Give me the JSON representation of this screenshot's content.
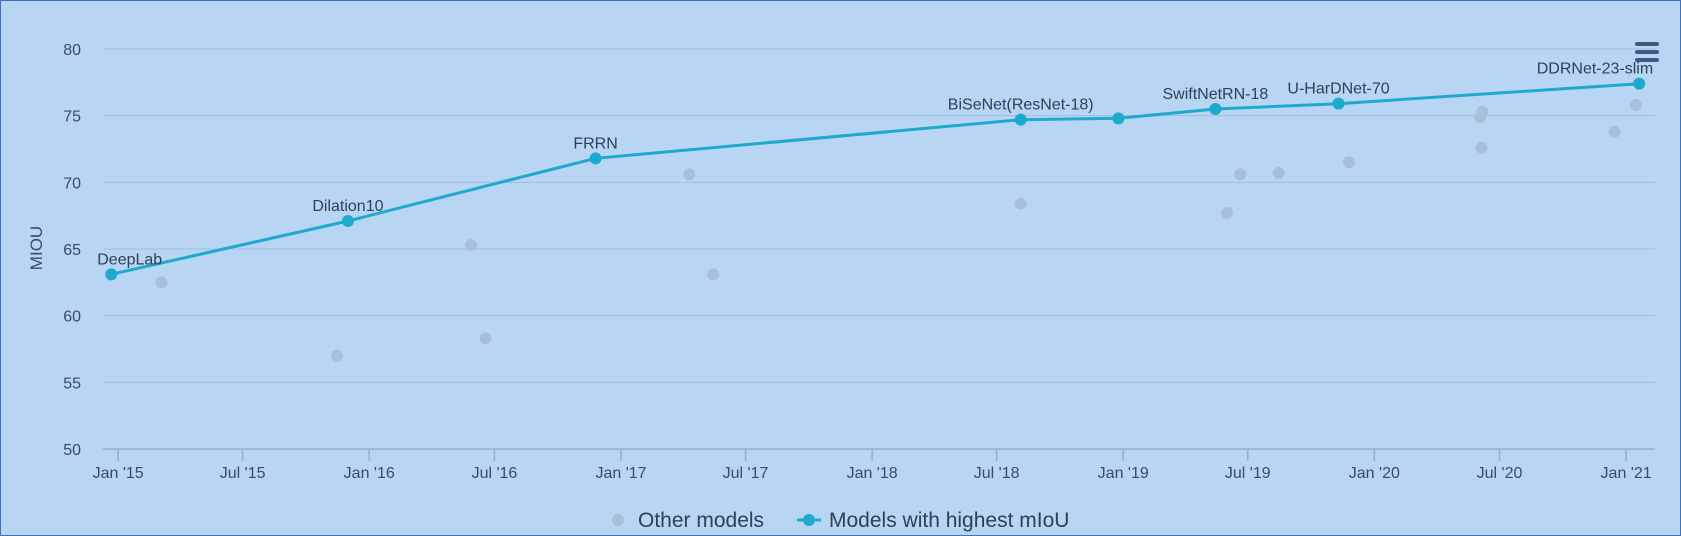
{
  "chart_data": {
    "type": "scatter",
    "ylabel": "MIOU",
    "xlabel": "",
    "ylim": [
      50,
      80
    ],
    "xlim": [
      "2014-12-10",
      "2021-02-12"
    ],
    "y_ticks": [
      50,
      55,
      60,
      65,
      70,
      75,
      80
    ],
    "x_ticks": [
      {
        "date": "2015-01-01",
        "label": "Jan '15"
      },
      {
        "date": "2015-07-01",
        "label": "Jul '15"
      },
      {
        "date": "2016-01-01",
        "label": "Jan '16"
      },
      {
        "date": "2016-07-01",
        "label": "Jul '16"
      },
      {
        "date": "2017-01-01",
        "label": "Jan '17"
      },
      {
        "date": "2017-07-01",
        "label": "Jul '17"
      },
      {
        "date": "2018-01-01",
        "label": "Jan '18"
      },
      {
        "date": "2018-07-01",
        "label": "Jul '18"
      },
      {
        "date": "2019-01-01",
        "label": "Jan '19"
      },
      {
        "date": "2019-07-01",
        "label": "Jul '19"
      },
      {
        "date": "2020-01-01",
        "label": "Jan '20"
      },
      {
        "date": "2020-07-01",
        "label": "Jul '20"
      },
      {
        "date": "2021-01-01",
        "label": "Jan '21"
      }
    ],
    "grid": true,
    "legend_position": "bottom-center",
    "series": [
      {
        "name": "Other models",
        "kind": "scatter",
        "color": "#a7bfd9",
        "points": [
          {
            "x": "2015-03-05",
            "y": 62.5
          },
          {
            "x": "2015-11-15",
            "y": 57.0
          },
          {
            "x": "2016-05-28",
            "y": 65.3
          },
          {
            "x": "2016-06-18",
            "y": 58.3
          },
          {
            "x": "2017-04-10",
            "y": 70.6
          },
          {
            "x": "2017-05-15",
            "y": 63.1
          },
          {
            "x": "2018-08-05",
            "y": 68.4
          },
          {
            "x": "2019-06-01",
            "y": 67.7
          },
          {
            "x": "2019-06-20",
            "y": 70.6
          },
          {
            "x": "2019-08-15",
            "y": 70.7
          },
          {
            "x": "2019-11-25",
            "y": 71.5
          },
          {
            "x": "2020-06-05",
            "y": 72.6
          },
          {
            "x": "2020-06-03",
            "y": 74.9
          },
          {
            "x": "2020-06-06",
            "y": 75.3
          },
          {
            "x": "2020-12-15",
            "y": 73.8
          },
          {
            "x": "2021-01-15",
            "y": 75.8
          }
        ]
      },
      {
        "name": "Models with highest mIoU",
        "kind": "line",
        "color": "#1eaacd",
        "points": [
          {
            "x": "2014-12-22",
            "y": 63.1,
            "label": "DeepLab"
          },
          {
            "x": "2015-12-01",
            "y": 67.1,
            "label": "Dilation10"
          },
          {
            "x": "2016-11-25",
            "y": 71.8,
            "label": "FRRN"
          },
          {
            "x": "2018-08-05",
            "y": 74.7,
            "label": "BiSeNet(ResNet-18)"
          },
          {
            "x": "2018-12-25",
            "y": 74.8,
            "label": ""
          },
          {
            "x": "2019-05-15",
            "y": 75.5,
            "label": "SwiftNetRN-18"
          },
          {
            "x": "2019-11-10",
            "y": 75.9,
            "label": "U-HarDNet-70"
          },
          {
            "x": "2021-01-20",
            "y": 77.4,
            "label": "DDRNet-23-slim"
          }
        ]
      }
    ]
  }
}
